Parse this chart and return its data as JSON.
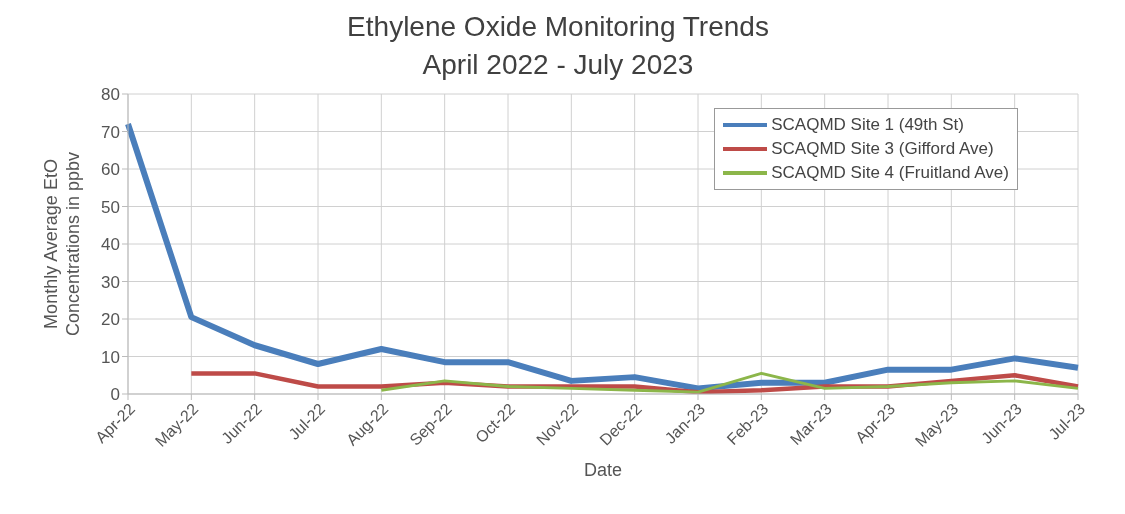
{
  "chart_data": {
    "type": "line",
    "title": "Ethylene Oxide Monitoring Trends",
    "subtitle": "April 2022 - July 2023",
    "xlabel": "Date",
    "ylabel": "Monthly Average EtO Concentrations in ppbv",
    "categories": [
      "Apr-22",
      "May-22",
      "Jun-22",
      "Jul-22",
      "Aug-22",
      "Sep-22",
      "Oct-22",
      "Nov-22",
      "Dec-22",
      "Jan-23",
      "Feb-23",
      "Mar-23",
      "Apr-23",
      "May-23",
      "Jun-23",
      "Jul-23"
    ],
    "series": [
      {
        "name": "SCAQMD Site 1 (49th St)",
        "color": "#4a7ebb",
        "values": [
          72,
          20.5,
          13,
          8,
          12,
          8.5,
          8.5,
          3.5,
          4.5,
          1.5,
          3,
          3,
          6.5,
          6.5,
          9.5,
          7
        ]
      },
      {
        "name": "SCAQMD Site 3 (Gifford Ave)",
        "color": "#be4b48",
        "values": [
          null,
          5.5,
          5.5,
          2,
          2,
          3,
          2,
          2,
          2,
          0.5,
          1,
          2,
          2,
          3.5,
          5,
          2
        ]
      },
      {
        "name": "SCAQMD Site 4 (Fruitland Ave)",
        "color": "#8cb64a",
        "values": [
          null,
          null,
          null,
          null,
          1,
          3.5,
          2,
          1.5,
          1,
          0.5,
          5.5,
          1.5,
          2,
          3,
          3.5,
          1.5
        ]
      }
    ],
    "ylim": [
      0,
      80
    ],
    "yticks": [
      0,
      10,
      20,
      30,
      40,
      50,
      60,
      70,
      80
    ],
    "grid": true,
    "legend": "top right",
    "marker": "none",
    "line_style": "solid"
  }
}
